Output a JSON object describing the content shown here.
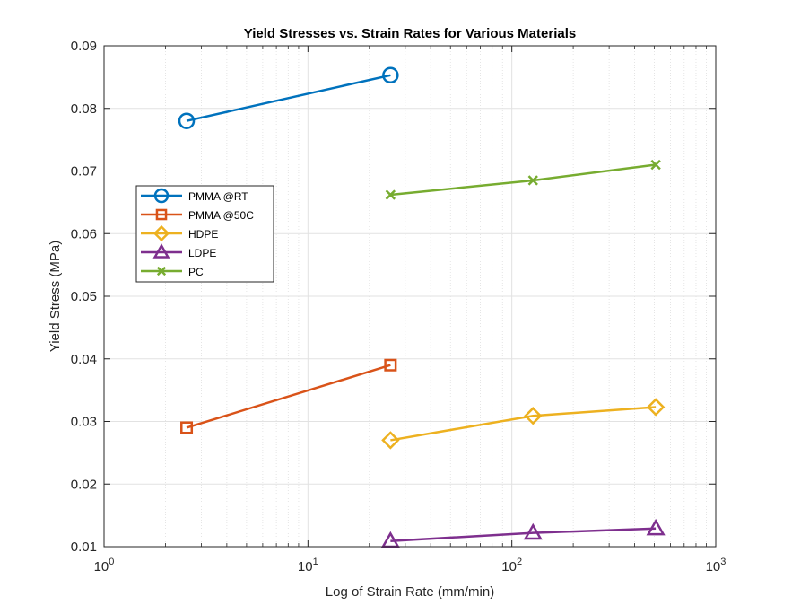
{
  "chart_data": {
    "type": "line",
    "title": "Yield Stresses vs. Strain Rates for Various Materials",
    "xlabel": "Log of Strain Rate (mm/min)",
    "ylabel": "Yield Stress (MPa)",
    "xscale": "log",
    "xlim": [
      1,
      1000
    ],
    "ylim": [
      0.01,
      0.09
    ],
    "grid": "major and minor",
    "legend_position": "left, middle-upper inside plot",
    "x_ticks": [
      {
        "value": 1,
        "base": "10",
        "exp": "0"
      },
      {
        "value": 10,
        "base": "10",
        "exp": "1"
      },
      {
        "value": 100,
        "base": "10",
        "exp": "2"
      },
      {
        "value": 1000,
        "base": "10",
        "exp": "3"
      }
    ],
    "y_ticks": [
      {
        "value": 0.01,
        "label": "0.01"
      },
      {
        "value": 0.02,
        "label": "0.02"
      },
      {
        "value": 0.03,
        "label": "0.03"
      },
      {
        "value": 0.04,
        "label": "0.04"
      },
      {
        "value": 0.05,
        "label": "0.05"
      },
      {
        "value": 0.06,
        "label": "0.06"
      },
      {
        "value": 0.07,
        "label": "0.07"
      },
      {
        "value": 0.08,
        "label": "0.08"
      },
      {
        "value": 0.09,
        "label": "0.09"
      }
    ],
    "series": [
      {
        "name": "PMMA @RT",
        "marker": "circle",
        "color": "#0072BD",
        "x": [
          2.54,
          25.4
        ],
        "y": [
          0.078,
          0.0853
        ]
      },
      {
        "name": "PMMA @50C",
        "marker": "square",
        "color": "#D95319",
        "x": [
          2.54,
          25.4
        ],
        "y": [
          0.029,
          0.039
        ]
      },
      {
        "name": "HDPE",
        "marker": "diamond",
        "color": "#EDB120",
        "x": [
          25.4,
          127,
          508
        ],
        "y": [
          0.027,
          0.0309,
          0.0323
        ]
      },
      {
        "name": "LDPE",
        "marker": "triangle",
        "color": "#7E2F8E",
        "x": [
          25.4,
          127,
          508
        ],
        "y": [
          0.0109,
          0.0122,
          0.0129
        ]
      },
      {
        "name": "PC",
        "marker": "x",
        "color": "#77AC30",
        "x": [
          25.4,
          127,
          508
        ],
        "y": [
          0.0662,
          0.0685,
          0.071
        ]
      }
    ]
  }
}
